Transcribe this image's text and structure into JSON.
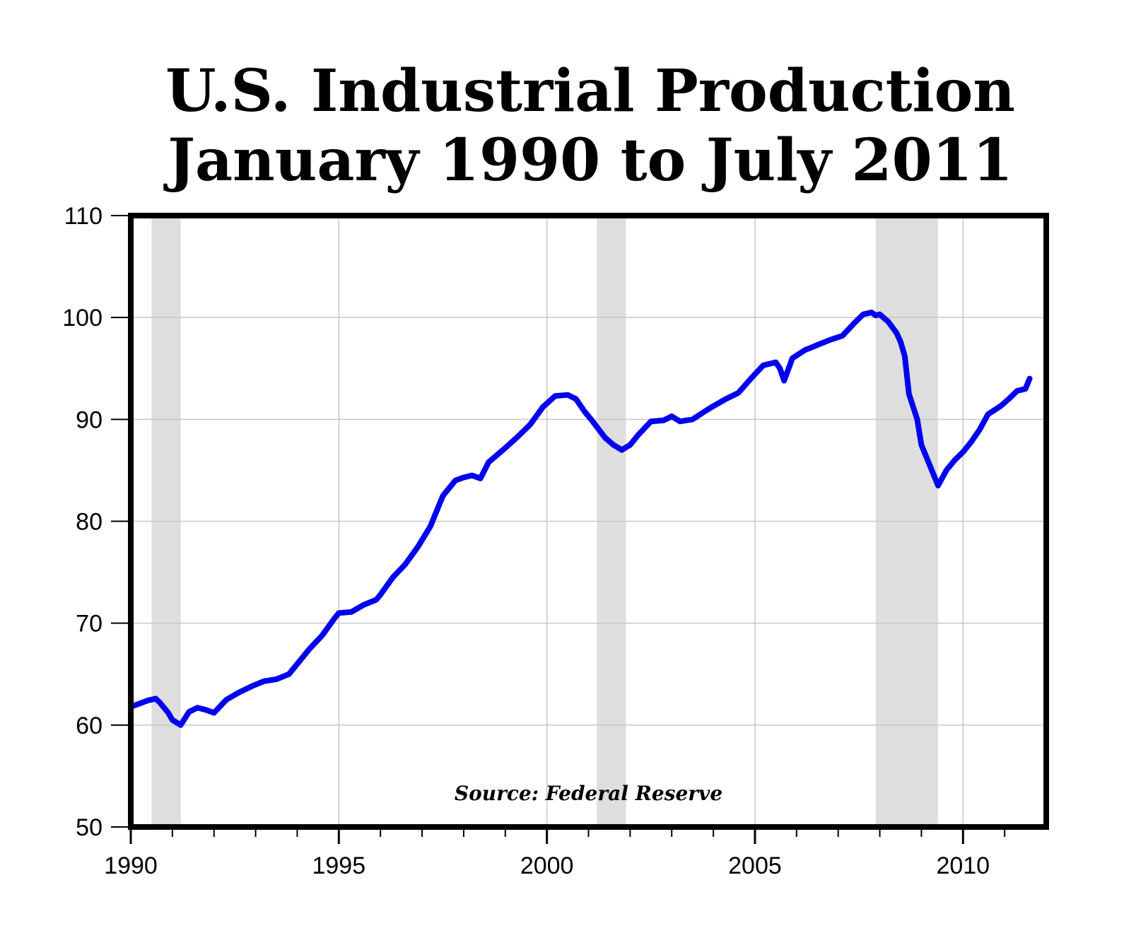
{
  "chart_data": {
    "type": "line",
    "title_line1": "U.S. Industrial Production",
    "title_line2": "January 1990 to July 2011",
    "source": "Source: Federal Reserve",
    "xlabel": "",
    "ylabel": "",
    "xlim": [
      1990.0,
      2012.0
    ],
    "ylim": [
      50,
      110
    ],
    "x_ticks": [
      1990,
      1995,
      2000,
      2005,
      2010
    ],
    "y_ticks": [
      50,
      60,
      70,
      80,
      90,
      100,
      110
    ],
    "grid": true,
    "line_color": "#0000ee",
    "recession_color": "#dedede",
    "recessions": [
      [
        1990.5,
        1991.2
      ],
      [
        2001.2,
        2001.9
      ],
      [
        2007.9,
        2009.4
      ]
    ],
    "series": [
      {
        "x": [
          1990.0,
          1990.2,
          1990.4,
          1990.6,
          1990.7,
          1990.9,
          1991.0,
          1991.2,
          1991.4,
          1991.6,
          1991.8,
          1992.0,
          1992.3,
          1992.6,
          1992.9,
          1993.2,
          1993.5,
          1993.8,
          1994.0,
          1994.3,
          1994.6,
          1994.9,
          1995.0,
          1995.3,
          1995.6,
          1995.9,
          1996.0,
          1996.3,
          1996.6,
          1996.9,
          1997.2,
          1997.5,
          1997.8,
          1998.0,
          1998.2,
          1998.4,
          1998.6,
          1998.8,
          1999.0,
          1999.3,
          1999.6,
          1999.9,
          2000.2,
          2000.5,
          2000.7,
          2000.9,
          2001.1,
          2001.4,
          2001.6,
          2001.8,
          2002.0,
          2002.2,
          2002.5,
          2002.8,
          2003.0,
          2003.2,
          2003.5,
          2003.8,
          2004.0,
          2004.3,
          2004.6,
          2004.9,
          2005.2,
          2005.5,
          2005.6,
          2005.7,
          2005.9,
          2006.2,
          2006.5,
          2006.8,
          2007.1,
          2007.4,
          2007.6,
          2007.8,
          2007.9,
          2008.0,
          2008.2,
          2008.4,
          2008.5,
          2008.6,
          2008.7,
          2008.9,
          2009.0,
          2009.2,
          2009.4,
          2009.6,
          2009.8,
          2010.0,
          2010.2,
          2010.4,
          2010.6,
          2010.9,
          2011.1,
          2011.3,
          2011.5,
          2011.6
        ],
        "values": [
          61.8,
          62.1,
          62.4,
          62.6,
          62.2,
          61.2,
          60.5,
          60.0,
          61.3,
          61.7,
          61.5,
          61.2,
          62.5,
          63.2,
          63.8,
          64.3,
          64.5,
          65.0,
          66.0,
          67.5,
          68.8,
          70.5,
          71.0,
          71.1,
          71.8,
          72.3,
          72.8,
          74.5,
          75.8,
          77.5,
          79.5,
          82.5,
          84.0,
          84.3,
          84.5,
          84.2,
          85.8,
          86.5,
          87.2,
          88.3,
          89.5,
          91.2,
          92.3,
          92.4,
          92.0,
          90.8,
          89.8,
          88.2,
          87.5,
          87.0,
          87.5,
          88.5,
          89.8,
          89.9,
          90.3,
          89.8,
          90.0,
          90.8,
          91.3,
          92.0,
          92.6,
          94.0,
          95.3,
          95.6,
          95.0,
          93.8,
          96.0,
          96.8,
          97.3,
          97.8,
          98.2,
          99.5,
          100.3,
          100.5,
          100.2,
          100.3,
          99.6,
          98.5,
          97.6,
          96.2,
          92.5,
          90.0,
          87.5,
          85.5,
          83.5,
          85.0,
          86.0,
          86.8,
          87.8,
          89.0,
          90.5,
          91.3,
          92.0,
          92.8,
          93.0,
          94.0
        ]
      }
    ]
  }
}
